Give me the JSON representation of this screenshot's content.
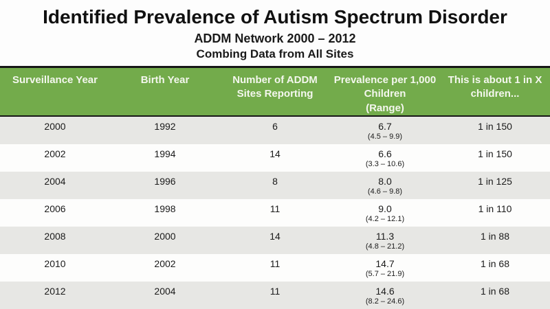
{
  "chart_data": {
    "type": "table",
    "title": "Identified Prevalence of Autism Spectrum Disorder",
    "subtitle1": "ADDM Network 2000 – 2012",
    "subtitle2": "Combing Data from All Sites",
    "columns": [
      "Surveillance Year",
      "Birth Year",
      "Number of ADDM\nSites Reporting",
      "Prevalence per 1,000\nChildren\n(Range)",
      "This is about 1 in X\nchildren..."
    ],
    "rows": [
      {
        "surveillance_year": "2000",
        "birth_year": "1992",
        "sites_reporting": "6",
        "prevalence": "6.7",
        "range": "(4.5 – 9.9)",
        "about_one_in": "1 in 150"
      },
      {
        "surveillance_year": "2002",
        "birth_year": "1994",
        "sites_reporting": "14",
        "prevalence": "6.6",
        "range": "(3.3 – 10.6)",
        "about_one_in": "1 in 150"
      },
      {
        "surveillance_year": "2004",
        "birth_year": "1996",
        "sites_reporting": "8",
        "prevalence": "8.0",
        "range": "(4.6 – 9.8)",
        "about_one_in": "1 in 125"
      },
      {
        "surveillance_year": "2006",
        "birth_year": "1998",
        "sites_reporting": "11",
        "prevalence": "9.0",
        "range": "(4.2 – 12.1)",
        "about_one_in": "1 in 110"
      },
      {
        "surveillance_year": "2008",
        "birth_year": "2000",
        "sites_reporting": "14",
        "prevalence": "11.3",
        "range": "(4.8 – 21.2)",
        "about_one_in": "1 in 88"
      },
      {
        "surveillance_year": "2010",
        "birth_year": "2002",
        "sites_reporting": "11",
        "prevalence": "14.7",
        "range": "(5.7 – 21.9)",
        "about_one_in": "1 in 68"
      },
      {
        "surveillance_year": "2012",
        "birth_year": "2004",
        "sites_reporting": "11",
        "prevalence": "14.6",
        "range": "(8.2 – 24.6)",
        "about_one_in": "1 in 68"
      }
    ],
    "colors": {
      "header_green": "#73ab4b",
      "header_text": "#f4f7ee",
      "row_alt_gray": "#e7e7e4",
      "row_white": "#fdfdfc",
      "border_dark": "#161616",
      "body_text": "#1a1a1a"
    }
  }
}
